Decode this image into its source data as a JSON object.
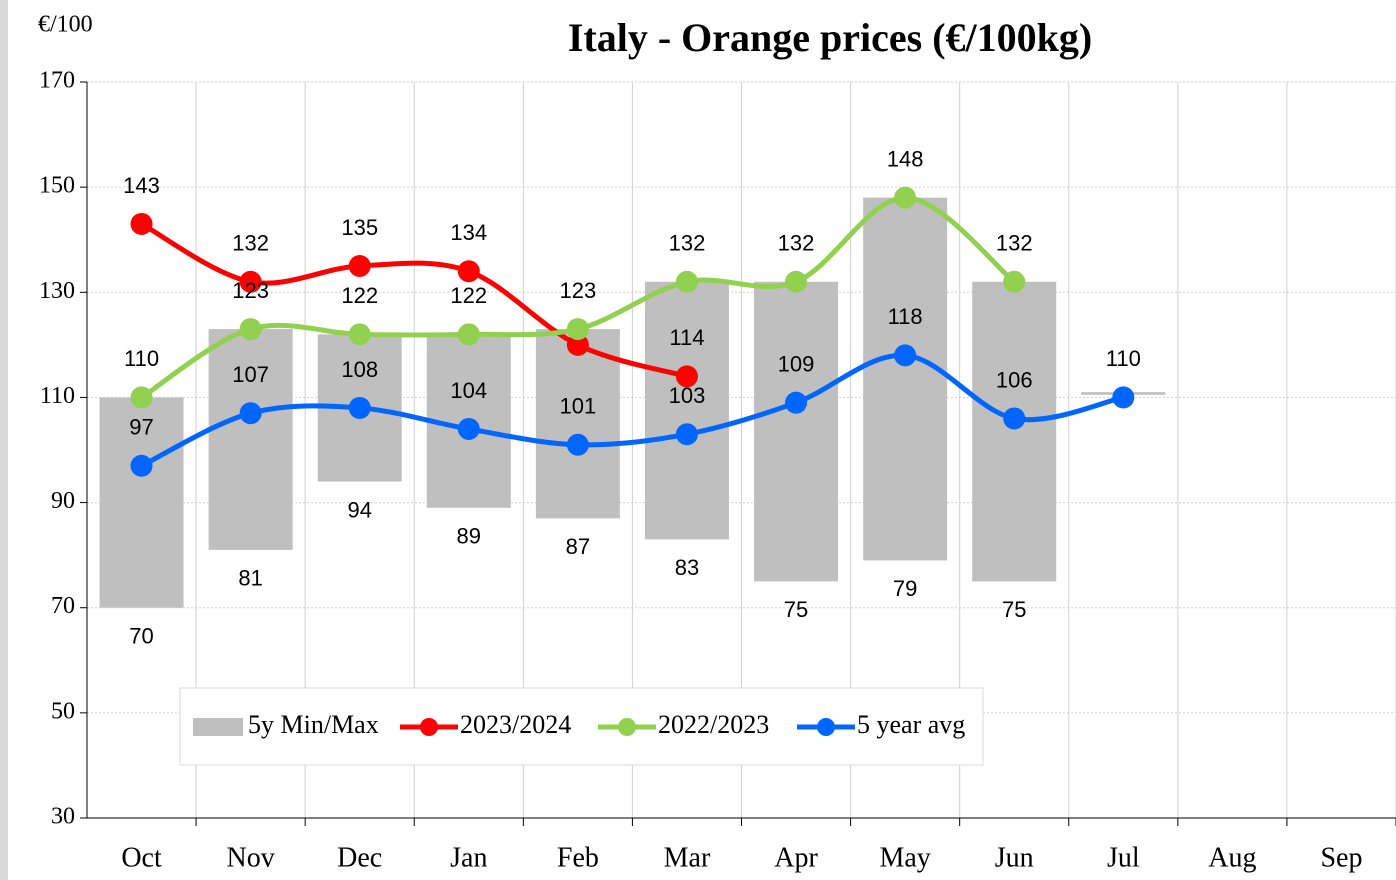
{
  "chart_data": {
    "type": "range_bar_line",
    "title": "Italy  -  Orange  prices    (€/100kg)",
    "y_label": "€/100",
    "categories": [
      "Oct",
      "Nov",
      "Dec",
      "Jan",
      "Feb",
      "Mar",
      "Apr",
      "May",
      "Jun",
      "Jul",
      "Aug",
      "Sep"
    ],
    "range": {
      "name": "5y Min/Max",
      "color": "#bfbfbf",
      "min": [
        70,
        81,
        94,
        89,
        87,
        83,
        75,
        79,
        75,
        110.5,
        null,
        null
      ],
      "max": [
        110,
        123,
        122,
        122,
        123,
        132,
        132,
        148,
        132,
        111,
        null,
        null
      ],
      "value_labels": [
        "70",
        "81",
        "94",
        "89",
        "87",
        "83",
        "75",
        "79",
        "75",
        null,
        null,
        null
      ]
    },
    "series": [
      {
        "name": "2023/2024",
        "color": "#ff0000",
        "values": [
          143,
          132,
          135,
          134,
          120,
          114,
          null,
          null,
          null,
          null,
          null,
          null
        ],
        "value_labels": [
          "143",
          "132",
          "135",
          "134",
          null,
          "114",
          null,
          null,
          null,
          null,
          null,
          null
        ]
      },
      {
        "name": "2022/2023",
        "color": "#92d050",
        "values": [
          110,
          123,
          122,
          122,
          123,
          132,
          132,
          148,
          132,
          null,
          null,
          null
        ]
      },
      {
        "name": "5 year avg",
        "color": "#0066ff",
        "values": [
          97,
          107,
          108,
          104,
          101,
          103,
          109,
          118,
          106,
          110,
          null,
          null
        ]
      }
    ],
    "ylim": [
      30,
      170
    ],
    "yticks": [
      30,
      50,
      70,
      90,
      110,
      130,
      150,
      170
    ],
    "grid": true
  }
}
